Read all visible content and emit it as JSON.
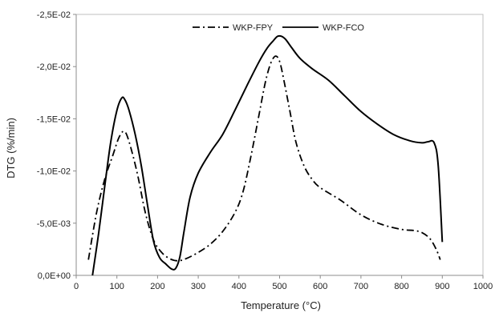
{
  "chart_data": {
    "type": "line",
    "title": "",
    "xlabel": "Temperature (°C)",
    "ylabel": "DTG (%/min)",
    "xlim": [
      0,
      1000
    ],
    "ylim": [
      -0.025,
      0
    ],
    "y_reversed": true,
    "x_ticks": [
      0,
      100,
      200,
      300,
      400,
      500,
      600,
      700,
      800,
      900,
      1000
    ],
    "x_tick_labels": [
      "0",
      "100",
      "200",
      "300",
      "400",
      "500",
      "600",
      "700",
      "800",
      "900",
      "1000"
    ],
    "y_ticks": [
      0,
      -0.005,
      -0.01,
      -0.015,
      -0.02,
      -0.025
    ],
    "y_tick_labels": [
      "0,0E+00",
      "-5,0E-03",
      "-1,0E-02",
      "-1,5E-02",
      "-2,0E-02",
      "-2,5E-02"
    ],
    "grid": false,
    "legend_position": "top",
    "series": [
      {
        "name": "WKP-FPY",
        "line_style": "dash-dot",
        "color": "#000000",
        "x": [
          30,
          50,
          70,
          90,
          105,
          118,
          130,
          150,
          170,
          190,
          210,
          230,
          250,
          270,
          300,
          330,
          360,
          390,
          410,
          430,
          450,
          465,
          478,
          490,
          500,
          510,
          525,
          540,
          560,
          580,
          600,
          650,
          700,
          750,
          800,
          830,
          850,
          870,
          885,
          895
        ],
        "y": [
          -0.0015,
          -0.006,
          -0.0092,
          -0.0115,
          -0.0132,
          -0.0138,
          -0.0128,
          -0.0098,
          -0.006,
          -0.0034,
          -0.0022,
          -0.0016,
          -0.0014,
          -0.0016,
          -0.0022,
          -0.003,
          -0.0042,
          -0.006,
          -0.008,
          -0.0115,
          -0.0155,
          -0.0185,
          -0.0203,
          -0.021,
          -0.0205,
          -0.0188,
          -0.0158,
          -0.0128,
          -0.0105,
          -0.0092,
          -0.0084,
          -0.0072,
          -0.0058,
          -0.0049,
          -0.0044,
          -0.0043,
          -0.0041,
          -0.0035,
          -0.0025,
          -0.0015
        ]
      },
      {
        "name": "WKP-FCO",
        "line_style": "solid",
        "color": "#000000",
        "x": [
          40,
          55,
          70,
          85,
          100,
          112,
          120,
          130,
          145,
          160,
          175,
          190,
          205,
          220,
          235,
          245,
          255,
          265,
          280,
          300,
          330,
          360,
          390,
          420,
          450,
          470,
          485,
          495,
          505,
          515,
          530,
          550,
          580,
          620,
          660,
          700,
          740,
          780,
          820,
          850,
          865,
          880,
          890,
          900
        ],
        "y": [
          0,
          -0.004,
          -0.0085,
          -0.0128,
          -0.0158,
          -0.017,
          -0.0168,
          -0.0158,
          -0.0135,
          -0.0105,
          -0.0068,
          -0.0033,
          -0.0017,
          -0.0011,
          -0.0006,
          -0.0007,
          -0.0018,
          -0.0042,
          -0.0075,
          -0.0098,
          -0.0118,
          -0.0135,
          -0.0158,
          -0.0182,
          -0.0205,
          -0.0218,
          -0.0225,
          -0.0229,
          -0.0229,
          -0.0226,
          -0.0218,
          -0.0208,
          -0.0198,
          -0.0187,
          -0.0172,
          -0.0157,
          -0.0145,
          -0.0135,
          -0.0129,
          -0.0127,
          -0.0128,
          -0.0127,
          -0.0105,
          -0.0032
        ]
      }
    ]
  }
}
